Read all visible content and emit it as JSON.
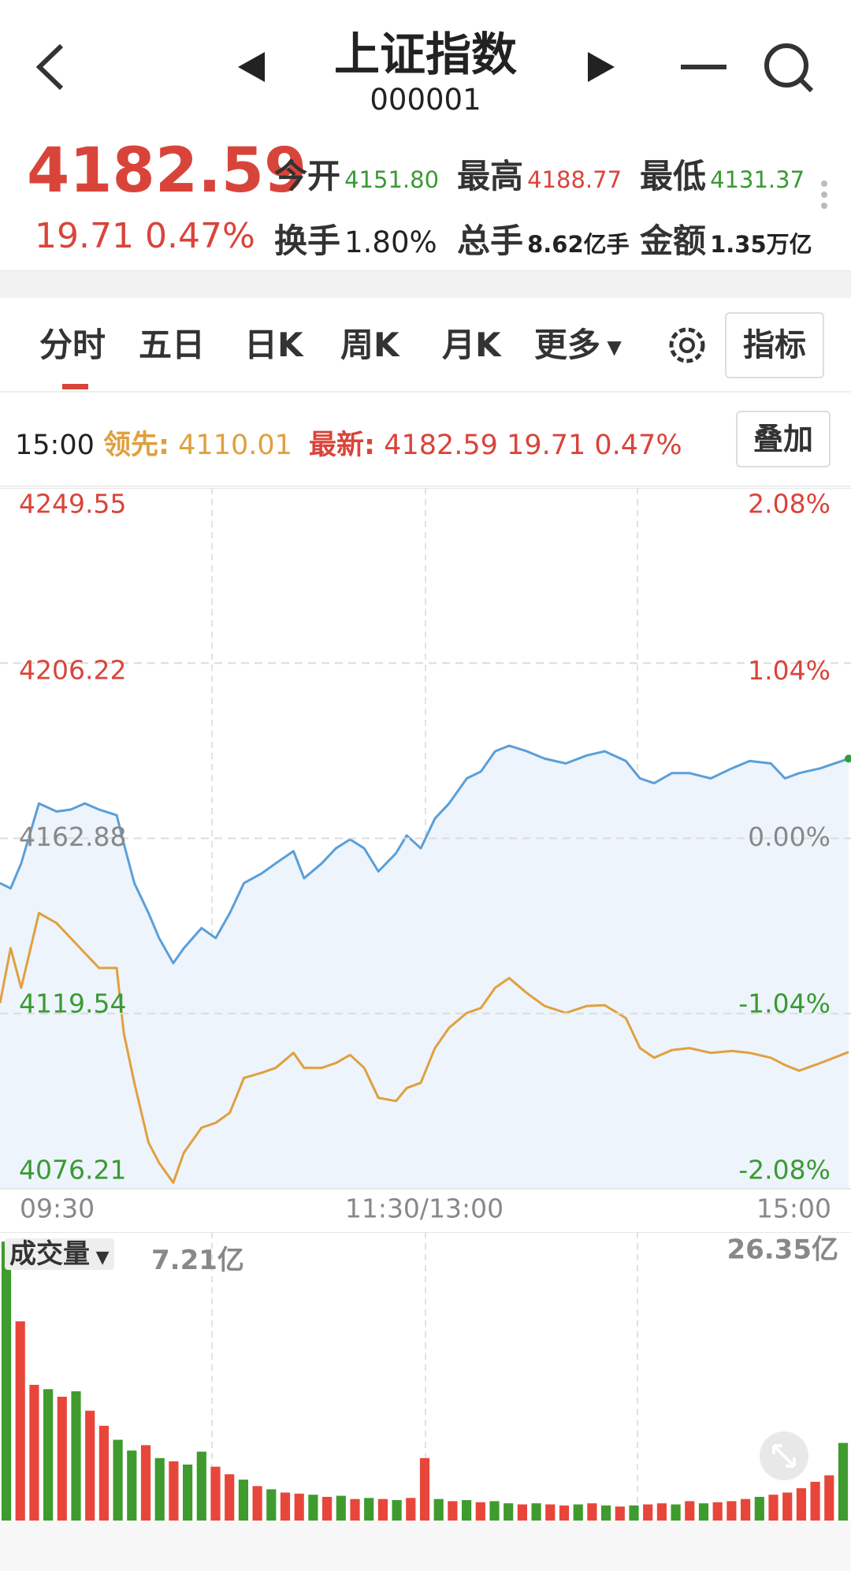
{
  "header": {
    "title": "上证指数",
    "code": "000001"
  },
  "quote": {
    "price": "4182.59",
    "change": "19.71",
    "change_pct": "0.47%",
    "stats": [
      {
        "label": "今开",
        "value": "4151.80"
      },
      {
        "label": "最高",
        "value": "4188.77"
      },
      {
        "label": "最低",
        "value": "4131.37"
      },
      {
        "label": "换手",
        "value": "1.80%"
      },
      {
        "label": "总手",
        "value": "8.62亿手"
      },
      {
        "label": "金额",
        "value": "1.35万亿"
      }
    ]
  },
  "tabs": [
    "分时",
    "五日",
    "日K",
    "周K",
    "月K",
    "更多"
  ],
  "indicator_button": "指标",
  "info_bar": {
    "time": "15:00",
    "lead_label": "领先:",
    "lead_value": "4110.01",
    "latest_label": "最新:",
    "latest_value": "4182.59",
    "latest_change": "19.71",
    "latest_pct": "0.47%",
    "overlay_button": "叠加"
  },
  "chart_data": [
    {
      "type": "line",
      "x": [
        0,
        3,
        6,
        11,
        16,
        20,
        24,
        28,
        33,
        35,
        38,
        42,
        45,
        49,
        52,
        57,
        61,
        65,
        69,
        74,
        78,
        83,
        86,
        91,
        95,
        99,
        103,
        107,
        112,
        115,
        119,
        123,
        127,
        132,
        136,
        140,
        144,
        149,
        154,
        160,
        166,
        171,
        177,
        181,
        185,
        190,
        195,
        201,
        207,
        212,
        218,
        222,
        226,
        232,
        240
      ],
      "xlim": [
        0,
        240
      ],
      "xticks": [
        {
          "value": 0,
          "label": "09:30"
        },
        {
          "value": 120,
          "label": "11:30/13:00"
        },
        {
          "value": 240,
          "label": "15:00"
        }
      ],
      "ylim": [
        4076.21,
        4249.55
      ],
      "yticks": [
        4249.55,
        4206.22,
        4162.88,
        4119.54,
        4076.21
      ],
      "y2lim": [
        -2.08,
        2.08
      ],
      "y2ticks": [
        {
          "value": 2.08,
          "label": "2.08%"
        },
        {
          "value": 1.04,
          "label": "1.04%"
        },
        {
          "value": 0,
          "label": "0.00%"
        },
        {
          "value": -1.04,
          "label": "-1.04%"
        },
        {
          "value": -2.08,
          "label": "-2.08%"
        }
      ],
      "grid": true,
      "series": [
        {
          "color": "#5b9fd8",
          "fill": "#edf4fc",
          "values": [
            4151.8,
            4150.5,
            4156.7,
            4171.5,
            4169.5,
            4170,
            4171.5,
            4170,
            4168.6,
            4161.6,
            4151.8,
            4144.4,
            4138.2,
            4132,
            4135.7,
            4140.7,
            4138.2,
            4144.4,
            4151.8,
            4154.2,
            4156.7,
            4159.7,
            4153,
            4156.7,
            4160.4,
            4162.6,
            4160.4,
            4154.7,
            4159.2,
            4163.6,
            4160.4,
            4167.8,
            4171.5,
            4177.7,
            4179.4,
            4184.4,
            4185.8,
            4184.4,
            4182.6,
            4181.4,
            4183.4,
            4184.4,
            4182,
            4177.7,
            4176.5,
            4179,
            4179,
            4177.7,
            4180.2,
            4182,
            4181.4,
            4177.7,
            4179,
            4180.2,
            4182.59
          ]
        },
        {
          "color": "#e0a03e",
          "values": [
            4122.1,
            4135.7,
            4125.9,
            4144.4,
            4141.9,
            4138.2,
            4134.5,
            4130.8,
            4130.8,
            4114.7,
            4102.4,
            4087.6,
            4082.6,
            4077.7,
            4085.1,
            4091.3,
            4092.5,
            4095,
            4103.6,
            4104.9,
            4106.1,
            4109.8,
            4106.1,
            4106.1,
            4107.3,
            4109.3,
            4106.1,
            4098.7,
            4097.9,
            4101.1,
            4102.4,
            4111,
            4116,
            4119.7,
            4120.9,
            4125.9,
            4128.3,
            4124.6,
            4121.4,
            4119.7,
            4121.4,
            4121.6,
            4118.4,
            4111,
            4108.6,
            4110.5,
            4111,
            4109.8,
            4110.3,
            4109.8,
            4108.6,
            4106.8,
            4105.4,
            4107.3,
            4110.01
          ]
        }
      ]
    },
    {
      "type": "bar",
      "title": "成交量",
      "current_label": "7.21亿",
      "x": [
        0,
        4,
        8,
        12,
        16,
        20,
        24,
        28,
        32,
        36,
        40,
        44,
        48,
        52,
        56,
        60,
        64,
        68,
        72,
        76,
        80,
        84,
        88,
        92,
        96,
        100,
        104,
        108,
        112,
        116,
        120,
        124,
        128,
        132,
        136,
        140,
        144,
        148,
        152,
        156,
        160,
        164,
        168,
        172,
        176,
        180,
        184,
        188,
        192,
        196,
        200,
        204,
        208,
        212,
        216,
        220,
        224,
        228,
        232,
        236,
        240
      ],
      "xlim": [
        0,
        240
      ],
      "ylim": [
        0,
        26.35
      ],
      "yticks": [
        {
          "value": 26.35,
          "label": "26.35亿"
        }
      ],
      "values": [
        25.9,
        18.5,
        12.6,
        12.2,
        11.5,
        12.0,
        10.2,
        8.8,
        7.5,
        6.5,
        7.0,
        5.8,
        5.5,
        5.2,
        6.4,
        5.0,
        4.3,
        3.8,
        3.2,
        2.9,
        2.6,
        2.5,
        2.4,
        2.2,
        2.3,
        2.0,
        2.1,
        2.0,
        1.9,
        2.1,
        5.8,
        2.0,
        1.8,
        1.9,
        1.7,
        1.8,
        1.6,
        1.5,
        1.6,
        1.5,
        1.4,
        1.5,
        1.6,
        1.4,
        1.3,
        1.4,
        1.5,
        1.6,
        1.5,
        1.8,
        1.6,
        1.7,
        1.8,
        2.0,
        2.2,
        2.4,
        2.6,
        3.0,
        3.6,
        4.2,
        7.21
      ],
      "colors": [
        "#3f9b2e",
        "#e8463a",
        "#e8463a",
        "#3f9b2e",
        "#e8463a",
        "#3f9b2e",
        "#e8463a",
        "#e8463a",
        "#3f9b2e",
        "#3f9b2e",
        "#e8463a",
        "#3f9b2e",
        "#e8463a",
        "#3f9b2e",
        "#3f9b2e",
        "#e8463a",
        "#e8463a",
        "#3f9b2e",
        "#e8463a",
        "#3f9b2e",
        "#e8463a",
        "#e8463a",
        "#3f9b2e",
        "#e8463a",
        "#3f9b2e",
        "#e8463a",
        "#3f9b2e",
        "#e8463a",
        "#3f9b2e",
        "#e8463a",
        "#e8463a",
        "#3f9b2e",
        "#e8463a",
        "#3f9b2e",
        "#e8463a",
        "#3f9b2e",
        "#3f9b2e",
        "#e8463a",
        "#3f9b2e",
        "#e8463a",
        "#e8463a",
        "#3f9b2e",
        "#e8463a",
        "#3f9b2e",
        "#e8463a",
        "#3f9b2e",
        "#e8463a",
        "#e8463a",
        "#3f9b2e",
        "#e8463a",
        "#3f9b2e",
        "#e8463a",
        "#e8463a",
        "#e8463a",
        "#3f9b2e",
        "#e8463a",
        "#e8463a",
        "#e8463a",
        "#e8463a",
        "#e8463a",
        "#3f9b2e"
      ]
    }
  ]
}
